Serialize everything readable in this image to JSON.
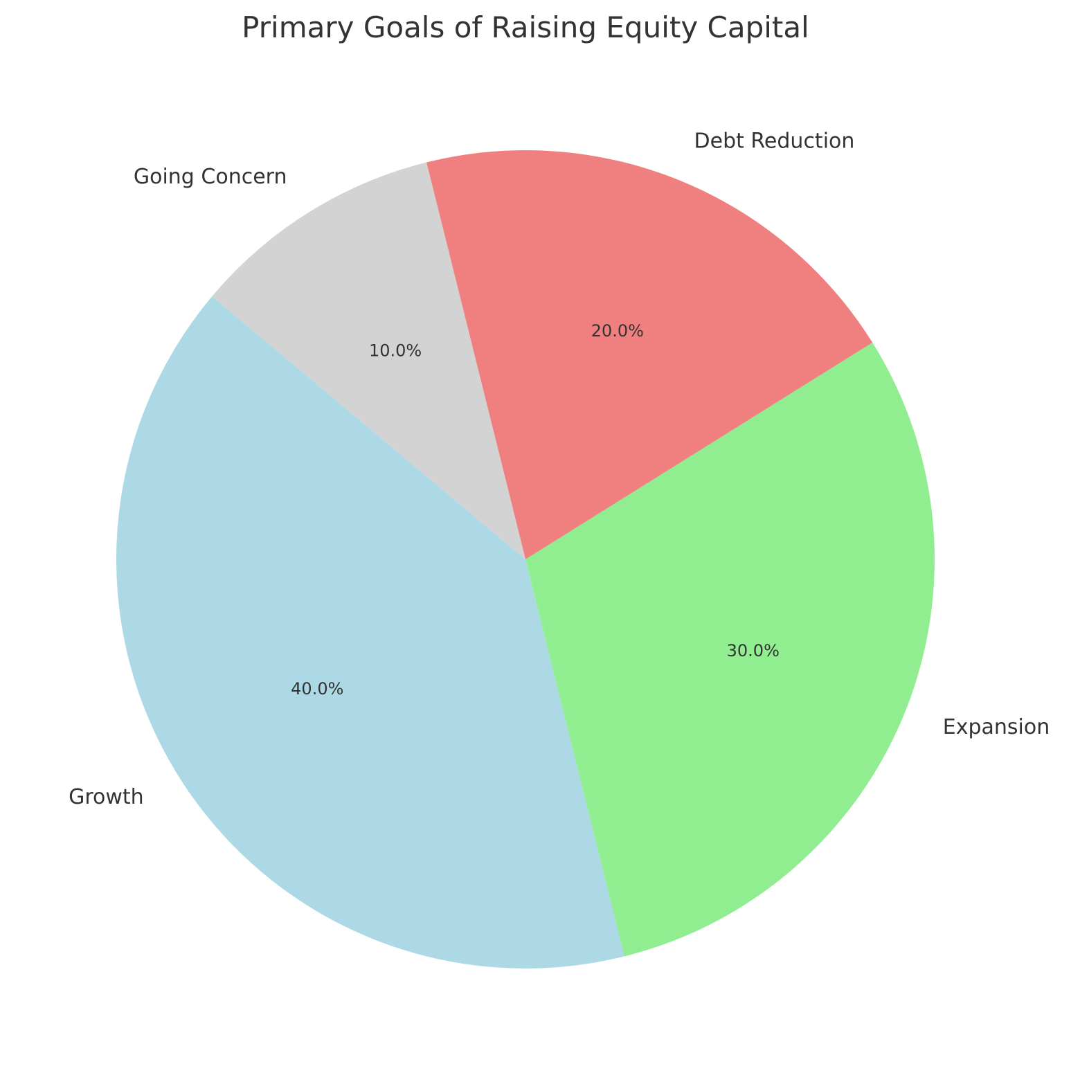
{
  "chart_data": {
    "type": "pie",
    "title": "Primary Goals of Raising Equity Capital",
    "categories": [
      "Growth",
      "Expansion",
      "Debt Reduction",
      "Going Concern"
    ],
    "values": [
      40,
      30,
      20,
      10
    ],
    "percent_labels": [
      "40.0%",
      "30.0%",
      "20.0%",
      "10.0%"
    ],
    "colors": [
      "#add8e6",
      "#90ee90",
      "#f08080",
      "#d3d3d3"
    ],
    "start_angle_deg": 140,
    "direction": "counterclockwise",
    "legend": "none"
  }
}
